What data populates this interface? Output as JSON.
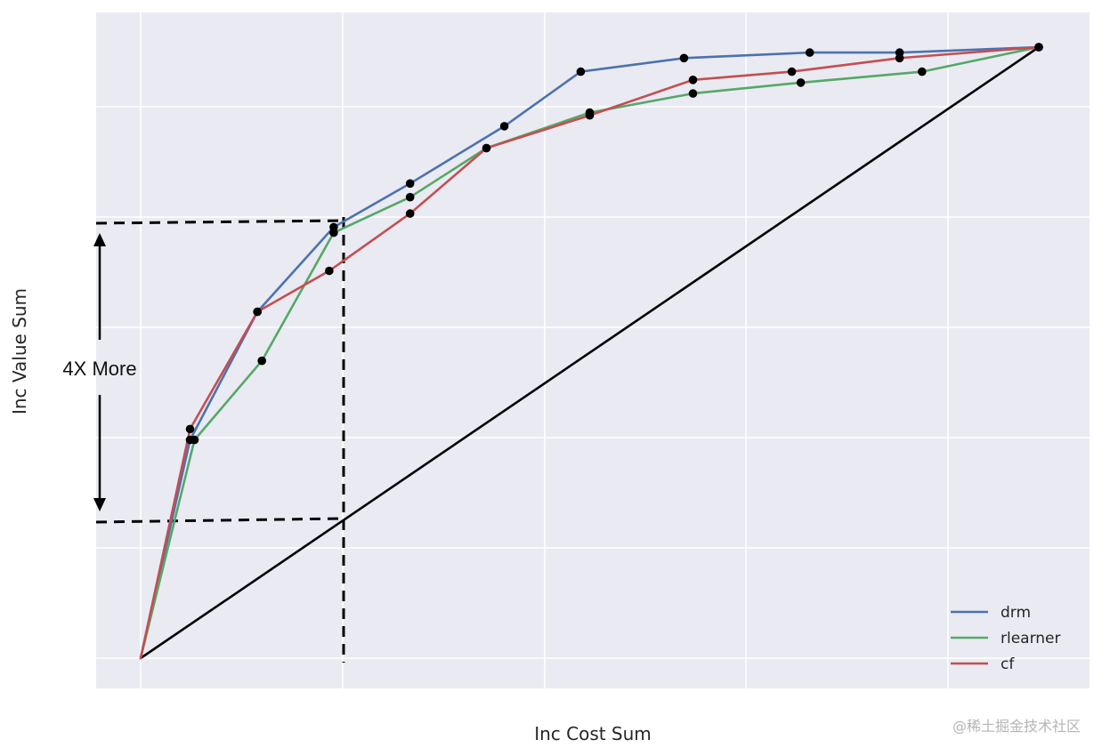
{
  "chart_data": {
    "type": "line",
    "xlabel": "Inc Cost Sum",
    "ylabel": "Inc Value Sum",
    "xlim": [
      -0.05,
      1.05
    ],
    "ylim": [
      -0.05,
      1.18
    ],
    "grid": true,
    "legend_position": "bottom-right",
    "series": [
      {
        "name": "drm",
        "color": "#4C72B0",
        "x": [
          0.0,
          0.055,
          0.13,
          0.215,
          0.3,
          0.405,
          0.49,
          0.605,
          0.745,
          0.845,
          1.0
        ],
        "y": [
          0.0,
          0.4,
          0.635,
          0.79,
          0.87,
          0.975,
          1.075,
          1.1,
          1.11,
          1.11,
          1.12
        ]
      },
      {
        "name": "rlearner",
        "color": "#55A868",
        "x": [
          0.0,
          0.06,
          0.135,
          0.215,
          0.3,
          0.385,
          0.5,
          0.615,
          0.735,
          0.87,
          1.0
        ],
        "y": [
          0.0,
          0.4,
          0.545,
          0.78,
          0.845,
          0.935,
          1.0,
          1.035,
          1.055,
          1.075,
          1.12
        ]
      },
      {
        "name": "cf",
        "color": "#C44E52",
        "x": [
          0.0,
          0.055,
          0.13,
          0.21,
          0.3,
          0.385,
          0.5,
          0.615,
          0.725,
          0.845,
          1.0
        ],
        "y": [
          0.0,
          0.42,
          0.635,
          0.71,
          0.815,
          0.935,
          0.995,
          1.06,
          1.075,
          1.1,
          1.12
        ]
      },
      {
        "name": "",
        "color": "#000000",
        "x": [
          0.0,
          1.0
        ],
        "y": [
          0.0,
          1.12
        ]
      }
    ],
    "annotations": [
      {
        "text": "4X More"
      }
    ]
  },
  "watermark": "@稀土掘金技术社区"
}
